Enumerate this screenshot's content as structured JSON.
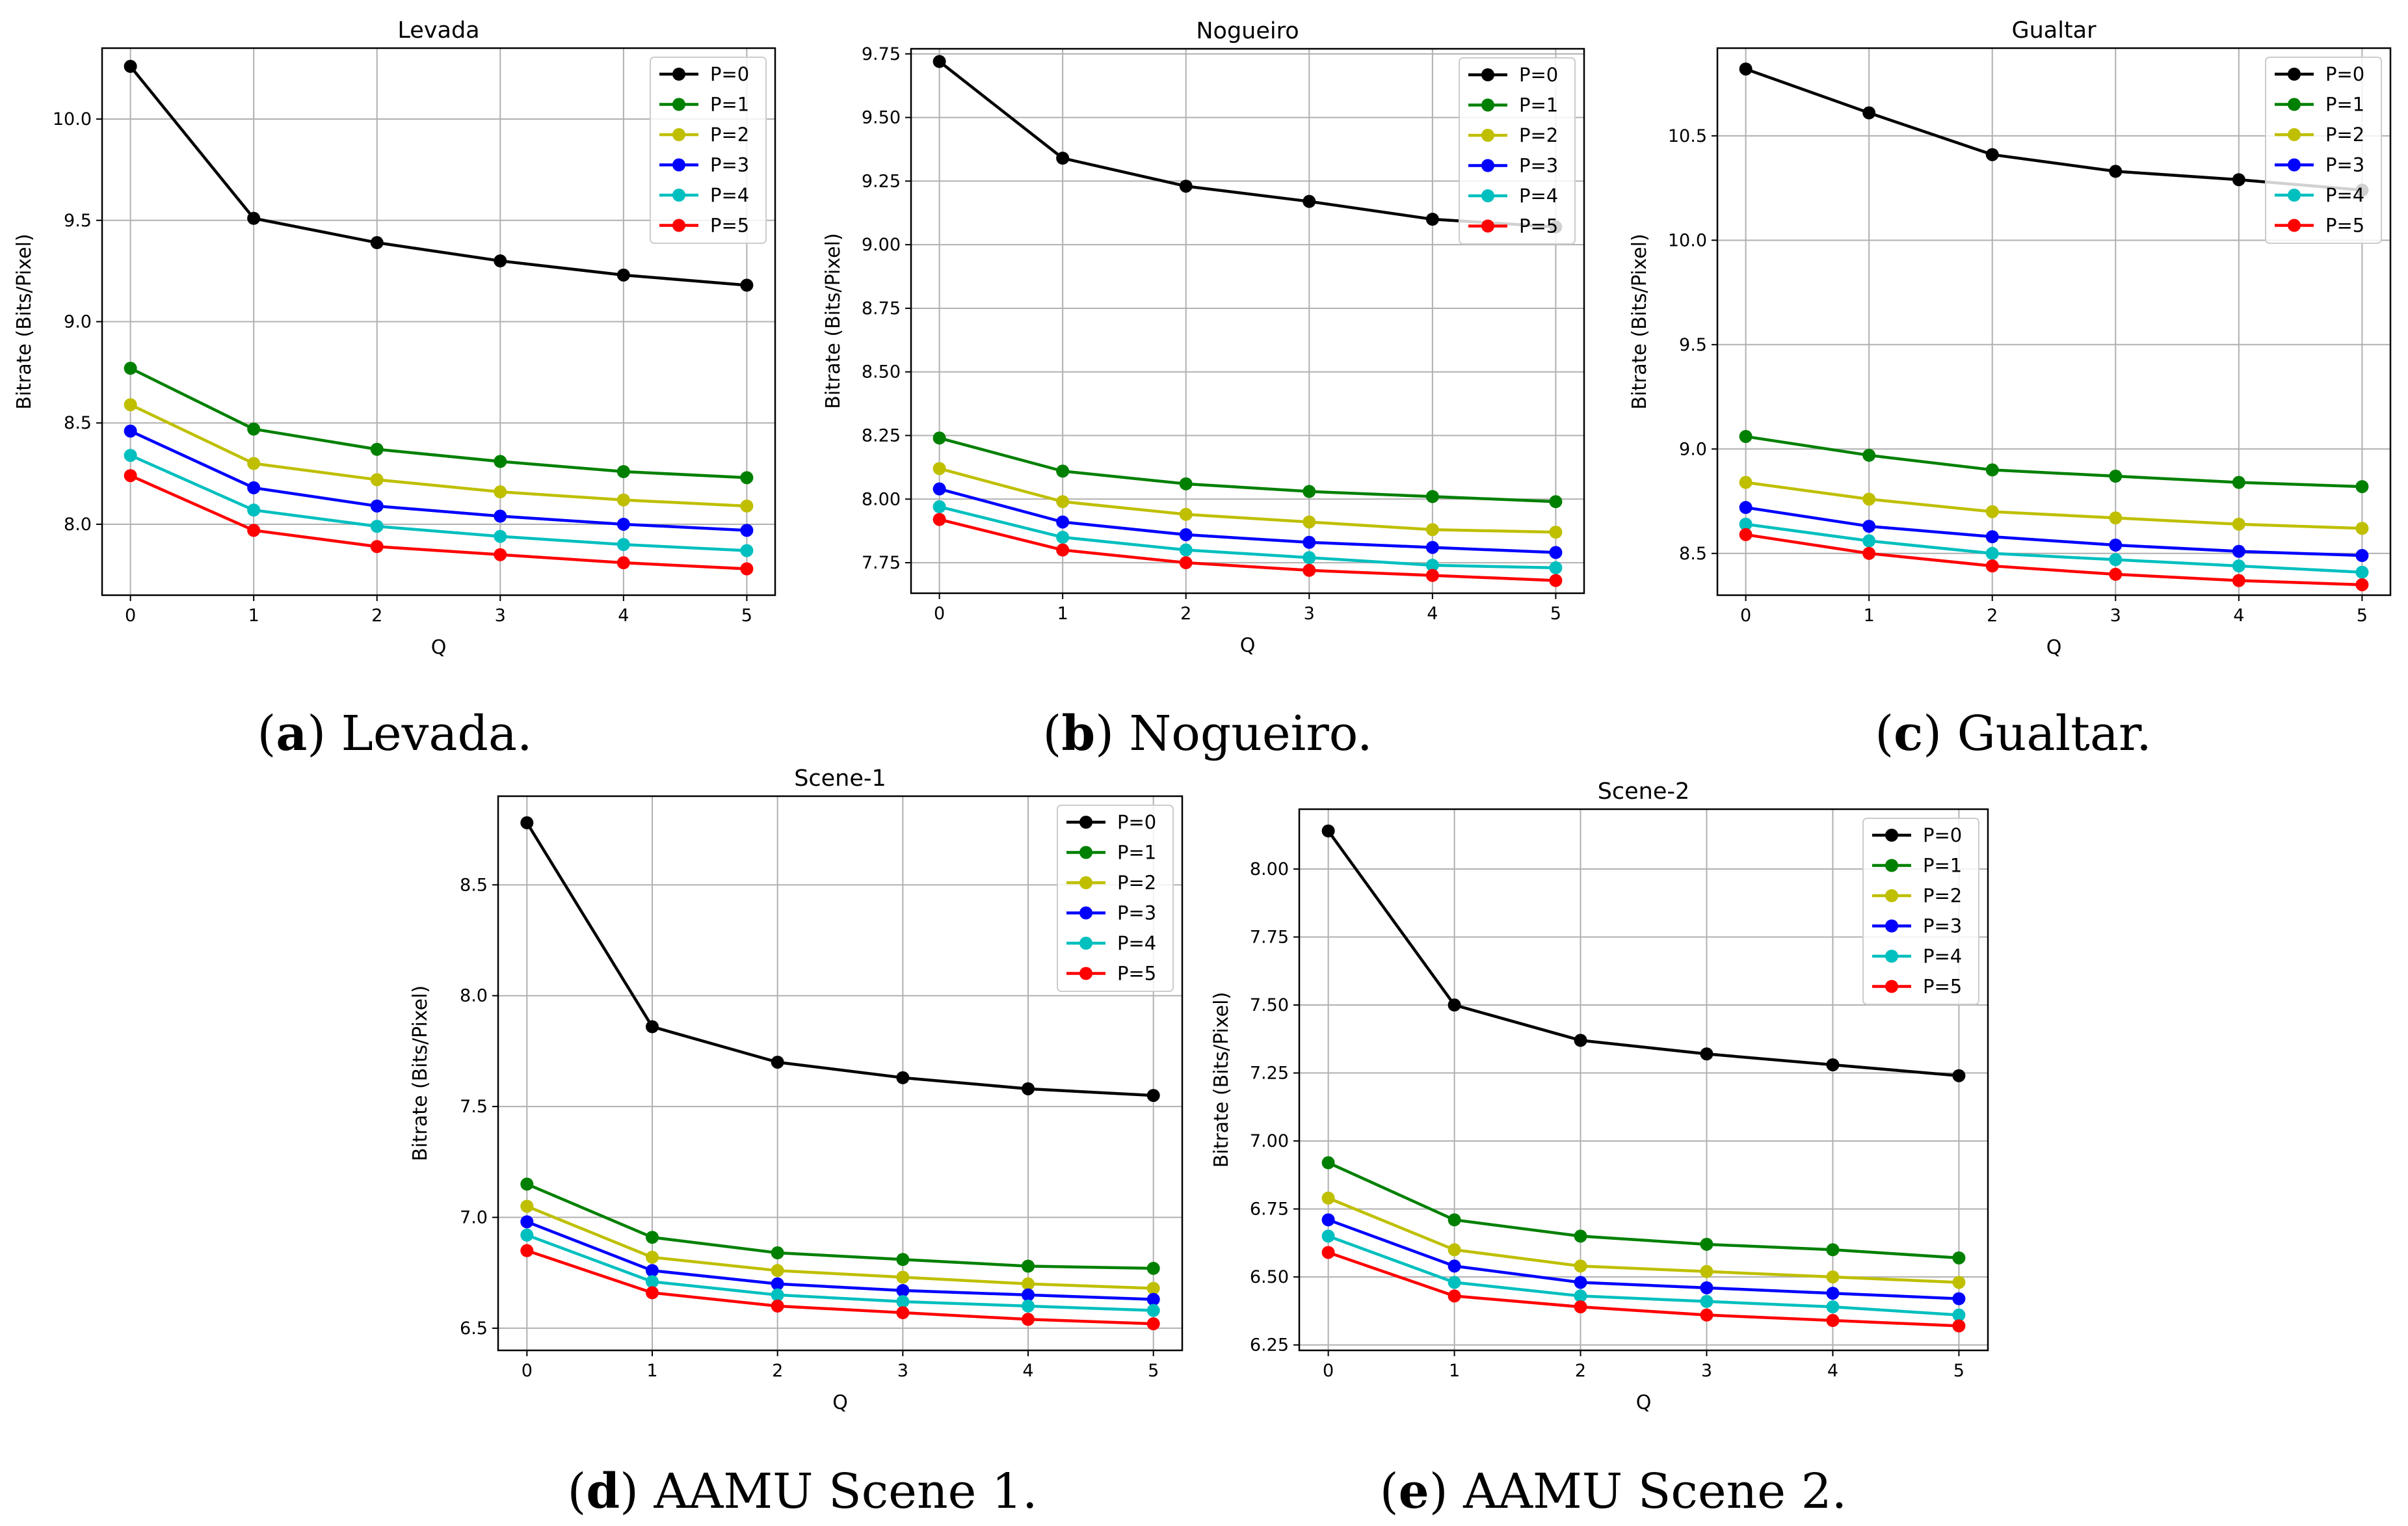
{
  "figure": {
    "x_label": "Q",
    "y_label": "Bitrate (Bits/Pixel)",
    "series_colors": [
      "#000000",
      "#008000",
      "#bfbf00",
      "#0000ff",
      "#00bfbf",
      "#ff0000"
    ]
  },
  "captions": [
    {
      "letter": "a",
      "text": " Levada."
    },
    {
      "letter": "b",
      "text": " Nogueiro."
    },
    {
      "letter": "c",
      "text": " Gualtar."
    },
    {
      "letter": "d",
      "text": " AAMU Scene 1."
    },
    {
      "letter": "e",
      "text": " AAMU Scene 2."
    }
  ],
  "chart_data": [
    {
      "type": "line",
      "title": "Levada",
      "xlabel": "Q",
      "ylabel": "Bitrate (Bits/Pixel)",
      "x": [
        0,
        1,
        2,
        3,
        4,
        5
      ],
      "xlim": [
        -0.23,
        5.23
      ],
      "ylim": [
        7.65,
        10.35
      ],
      "yticks": [
        "8.0",
        "8.5",
        "9.0",
        "9.5",
        "10.0"
      ],
      "grid": true,
      "legend_position": "top-right",
      "series": [
        {
          "name": "P=0",
          "values": [
            10.26,
            9.51,
            9.39,
            9.3,
            9.23,
            9.18
          ]
        },
        {
          "name": "P=1",
          "values": [
            8.77,
            8.47,
            8.37,
            8.31,
            8.26,
            8.23
          ]
        },
        {
          "name": "P=2",
          "values": [
            8.59,
            8.3,
            8.22,
            8.16,
            8.12,
            8.09
          ]
        },
        {
          "name": "P=3",
          "values": [
            8.46,
            8.18,
            8.09,
            8.04,
            8.0,
            7.97
          ]
        },
        {
          "name": "P=4",
          "values": [
            8.34,
            8.07,
            7.99,
            7.94,
            7.9,
            7.87
          ]
        },
        {
          "name": "P=5",
          "values": [
            8.24,
            7.97,
            7.89,
            7.85,
            7.81,
            7.78
          ]
        }
      ]
    },
    {
      "type": "line",
      "title": "Nogueiro",
      "xlabel": "Q",
      "ylabel": "Bitrate (Bits/Pixel)",
      "x": [
        0,
        1,
        2,
        3,
        4,
        5
      ],
      "xlim": [
        -0.23,
        5.23
      ],
      "ylim": [
        7.63,
        9.77
      ],
      "yticks": [
        "7.75",
        "8.00",
        "8.25",
        "8.50",
        "8.75",
        "9.00",
        "9.25",
        "9.50",
        "9.75"
      ],
      "grid": true,
      "legend_position": "top-right",
      "series": [
        {
          "name": "P=0",
          "values": [
            9.72,
            9.34,
            9.23,
            9.17,
            9.1,
            9.07
          ]
        },
        {
          "name": "P=1",
          "values": [
            8.24,
            8.11,
            8.06,
            8.03,
            8.01,
            7.99
          ]
        },
        {
          "name": "P=2",
          "values": [
            8.12,
            7.99,
            7.94,
            7.91,
            7.88,
            7.87
          ]
        },
        {
          "name": "P=3",
          "values": [
            8.04,
            7.91,
            7.86,
            7.83,
            7.81,
            7.79
          ]
        },
        {
          "name": "P=4",
          "values": [
            7.97,
            7.85,
            7.8,
            7.77,
            7.74,
            7.73
          ]
        },
        {
          "name": "P=5",
          "values": [
            7.92,
            7.8,
            7.75,
            7.72,
            7.7,
            7.68
          ]
        }
      ]
    },
    {
      "type": "line",
      "title": "Gualtar",
      "xlabel": "Q",
      "ylabel": "Bitrate (Bits/Pixel)",
      "x": [
        0,
        1,
        2,
        3,
        4,
        5
      ],
      "xlim": [
        -0.23,
        5.23
      ],
      "ylim": [
        8.3,
        10.92
      ],
      "yticks": [
        "8.5",
        "9.0",
        "9.5",
        "10.0",
        "10.5"
      ],
      "grid": true,
      "legend_position": "top-right",
      "series": [
        {
          "name": "P=0",
          "values": [
            10.82,
            10.61,
            10.41,
            10.33,
            10.29,
            10.24
          ]
        },
        {
          "name": "P=1",
          "values": [
            9.06,
            8.97,
            8.9,
            8.87,
            8.84,
            8.82
          ]
        },
        {
          "name": "P=2",
          "values": [
            8.84,
            8.76,
            8.7,
            8.67,
            8.64,
            8.62
          ]
        },
        {
          "name": "P=3",
          "values": [
            8.72,
            8.63,
            8.58,
            8.54,
            8.51,
            8.49
          ]
        },
        {
          "name": "P=4",
          "values": [
            8.64,
            8.56,
            8.5,
            8.47,
            8.44,
            8.41
          ]
        },
        {
          "name": "P=5",
          "values": [
            8.59,
            8.5,
            8.44,
            8.4,
            8.37,
            8.35
          ]
        }
      ]
    },
    {
      "type": "line",
      "title": "Scene-1",
      "xlabel": "Q",
      "ylabel": "Bitrate (Bits/Pixel)",
      "x": [
        0,
        1,
        2,
        3,
        4,
        5
      ],
      "xlim": [
        -0.23,
        5.23
      ],
      "ylim": [
        6.4,
        8.9
      ],
      "yticks": [
        "6.5",
        "7.0",
        "7.5",
        "8.0",
        "8.5"
      ],
      "grid": true,
      "legend_position": "top-right",
      "series": [
        {
          "name": "P=0",
          "values": [
            8.78,
            7.86,
            7.7,
            7.63,
            7.58,
            7.55
          ]
        },
        {
          "name": "P=1",
          "values": [
            7.15,
            6.91,
            6.84,
            6.81,
            6.78,
            6.77
          ]
        },
        {
          "name": "P=2",
          "values": [
            7.05,
            6.82,
            6.76,
            6.73,
            6.7,
            6.68
          ]
        },
        {
          "name": "P=3",
          "values": [
            6.98,
            6.76,
            6.7,
            6.67,
            6.65,
            6.63
          ]
        },
        {
          "name": "P=4",
          "values": [
            6.92,
            6.71,
            6.65,
            6.62,
            6.6,
            6.58
          ]
        },
        {
          "name": "P=5",
          "values": [
            6.85,
            6.66,
            6.6,
            6.57,
            6.54,
            6.52
          ]
        }
      ]
    },
    {
      "type": "line",
      "title": "Scene-2",
      "xlabel": "Q",
      "ylabel": "Bitrate (Bits/Pixel)",
      "x": [
        0,
        1,
        2,
        3,
        4,
        5
      ],
      "xlim": [
        -0.23,
        5.23
      ],
      "ylim": [
        6.23,
        8.22
      ],
      "yticks": [
        "6.25",
        "6.50",
        "6.75",
        "7.00",
        "7.25",
        "7.50",
        "7.75",
        "8.00"
      ],
      "grid": true,
      "legend_position": "top-right",
      "series": [
        {
          "name": "P=0",
          "values": [
            8.14,
            7.5,
            7.37,
            7.32,
            7.28,
            7.24
          ]
        },
        {
          "name": "P=1",
          "values": [
            6.92,
            6.71,
            6.65,
            6.62,
            6.6,
            6.57
          ]
        },
        {
          "name": "P=2",
          "values": [
            6.79,
            6.6,
            6.54,
            6.52,
            6.5,
            6.48
          ]
        },
        {
          "name": "P=3",
          "values": [
            6.71,
            6.54,
            6.48,
            6.46,
            6.44,
            6.42
          ]
        },
        {
          "name": "P=4",
          "values": [
            6.65,
            6.48,
            6.43,
            6.41,
            6.39,
            6.36
          ]
        },
        {
          "name": "P=5",
          "values": [
            6.59,
            6.43,
            6.39,
            6.36,
            6.34,
            6.32
          ]
        }
      ]
    }
  ]
}
